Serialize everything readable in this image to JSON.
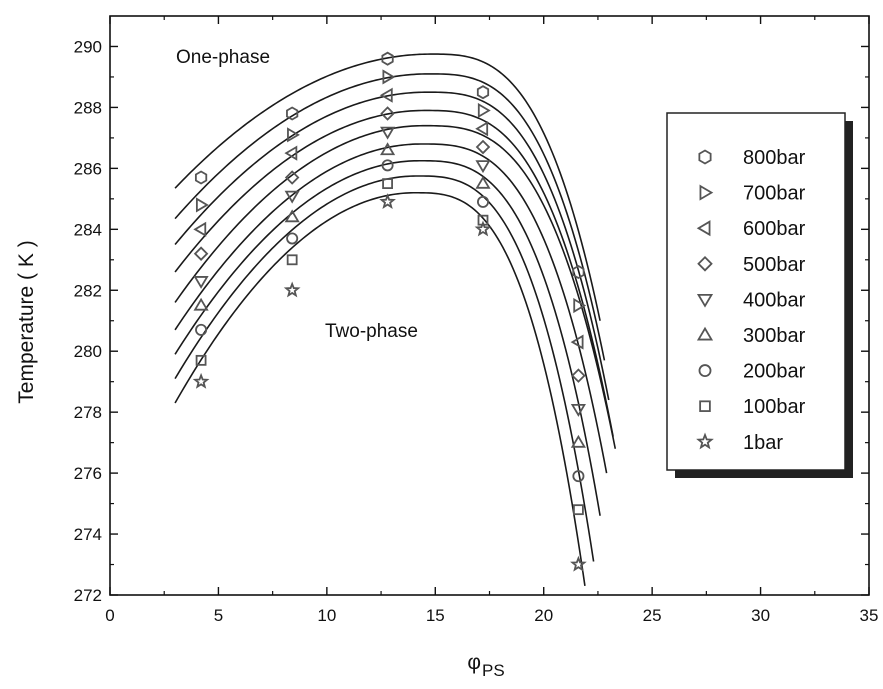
{
  "chart_data": {
    "type": "scatter",
    "xlabel": "φ",
    "xlabel_sub": "PS",
    "ylabel": "Temperature ( K )",
    "xlim": [
      0,
      35
    ],
    "ylim": [
      272,
      291
    ],
    "x_ticks": [
      0,
      5,
      10,
      15,
      20,
      25,
      30,
      35
    ],
    "y_ticks": [
      272,
      274,
      276,
      278,
      280,
      282,
      284,
      286,
      288,
      290
    ],
    "grid": false,
    "legend_position": "right",
    "annotations": [
      {
        "text": "One-phase",
        "x": 4.5,
        "y": 289.5
      },
      {
        "text": "Two-phase",
        "x": 10,
        "y": 280.5
      }
    ],
    "series": [
      {
        "name": "800bar",
        "marker": "hexagon",
        "x": [
          4.2,
          8.4,
          12.8,
          17.2,
          21.6
        ],
        "y": [
          285.7,
          287.8,
          289.6,
          288.5,
          282.6
        ]
      },
      {
        "name": "700bar",
        "marker": "triangle-right",
        "x": [
          4.2,
          8.4,
          12.8,
          17.2,
          21.6
        ],
        "y": [
          284.8,
          287.1,
          289.0,
          287.9,
          281.5
        ]
      },
      {
        "name": "600bar",
        "marker": "triangle-left",
        "x": [
          4.2,
          8.4,
          12.8,
          17.2,
          21.6
        ],
        "y": [
          284.0,
          286.5,
          288.4,
          287.3,
          280.3
        ]
      },
      {
        "name": "500bar",
        "marker": "diamond",
        "x": [
          4.2,
          8.4,
          12.8,
          17.2,
          21.6
        ],
        "y": [
          283.2,
          285.7,
          287.8,
          286.7,
          279.2
        ]
      },
      {
        "name": "400bar",
        "marker": "triangle-down",
        "x": [
          4.2,
          8.4,
          12.8,
          17.2,
          21.6
        ],
        "y": [
          282.3,
          285.1,
          287.2,
          286.1,
          278.1
        ]
      },
      {
        "name": "300bar",
        "marker": "triangle-up",
        "x": [
          4.2,
          8.4,
          12.8,
          17.2,
          21.6
        ],
        "y": [
          281.5,
          284.4,
          286.6,
          285.5,
          277.0
        ]
      },
      {
        "name": "200bar",
        "marker": "circle",
        "x": [
          4.2,
          8.4,
          12.8,
          17.2,
          21.6
        ],
        "y": [
          280.7,
          283.7,
          286.1,
          284.9,
          275.9
        ]
      },
      {
        "name": "100bar",
        "marker": "square",
        "x": [
          4.2,
          8.4,
          12.8,
          17.2,
          21.6
        ],
        "y": [
          279.7,
          283.0,
          285.5,
          284.3,
          274.8
        ]
      },
      {
        "name": "1bar",
        "marker": "star",
        "x": [
          4.2,
          8.4,
          12.8,
          17.2,
          21.6
        ],
        "y": [
          279.0,
          282.0,
          284.9,
          284.0,
          273.0
        ]
      }
    ],
    "fit_curves": [
      {
        "for": "800bar",
        "peak_x": 14.8,
        "peak_y": 289.75,
        "x_start": 3.0,
        "y_start": 285.35,
        "x_end": 22.6,
        "y_end": 281.0
      },
      {
        "for": "700bar",
        "peak_x": 14.7,
        "peak_y": 289.1,
        "x_start": 3.0,
        "y_start": 284.35,
        "x_end": 22.8,
        "y_end": 279.7
      },
      {
        "for": "600bar",
        "peak_x": 14.6,
        "peak_y": 288.5,
        "x_start": 3.0,
        "y_start": 283.5,
        "x_end": 23.0,
        "y_end": 278.4
      },
      {
        "for": "500bar",
        "peak_x": 14.5,
        "peak_y": 287.9,
        "x_start": 3.0,
        "y_start": 282.6,
        "x_end": 23.2,
        "y_end": 277.2
      },
      {
        "for": "400bar",
        "peak_x": 14.45,
        "peak_y": 287.4,
        "x_start": 3.0,
        "y_start": 281.6,
        "x_end": 23.3,
        "y_end": 276.8
      },
      {
        "for": "300bar",
        "peak_x": 14.35,
        "peak_y": 286.8,
        "x_start": 3.0,
        "y_start": 280.7,
        "x_end": 22.9,
        "y_end": 276.0
      },
      {
        "for": "200bar",
        "peak_x": 14.25,
        "peak_y": 286.25,
        "x_start": 3.0,
        "y_start": 279.9,
        "x_end": 22.6,
        "y_end": 274.6
      },
      {
        "for": "100bar",
        "peak_x": 14.15,
        "peak_y": 285.75,
        "x_start": 3.0,
        "y_start": 279.1,
        "x_end": 22.3,
        "y_end": 273.1
      },
      {
        "for": "1bar",
        "peak_x": 14.05,
        "peak_y": 285.2,
        "x_start": 3.0,
        "y_start": 278.3,
        "x_end": 21.9,
        "y_end": 272.3
      }
    ]
  }
}
